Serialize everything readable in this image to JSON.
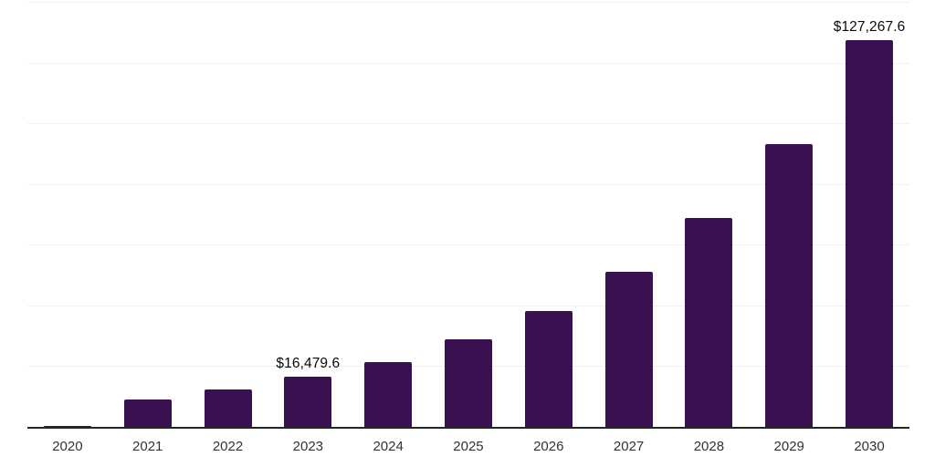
{
  "chart_data": {
    "type": "bar",
    "title": "",
    "xlabel": "",
    "ylabel": "",
    "categories": [
      "2020",
      "2021",
      "2022",
      "2023",
      "2024",
      "2025",
      "2026",
      "2027",
      "2028",
      "2029",
      "2030"
    ],
    "values": [
      400,
      8900,
      12200,
      16479.6,
      21300,
      28700,
      38200,
      51100,
      68900,
      93100,
      127267.6
    ],
    "value_labels": [
      "",
      "",
      "",
      "$16,479.6",
      "",
      "",
      "",
      "",
      "",
      "",
      "$127,267.6"
    ],
    "ylim": [
      0,
      140000
    ],
    "gridline_interval": 20000,
    "grid": true,
    "legend": false,
    "colors": {
      "bar": "#3A1150",
      "axis_line": "#262626",
      "gridline": "#f1f1f3",
      "tick_label": "#333333",
      "value_label": "#0a0a0a",
      "background": "#ffffff"
    }
  }
}
